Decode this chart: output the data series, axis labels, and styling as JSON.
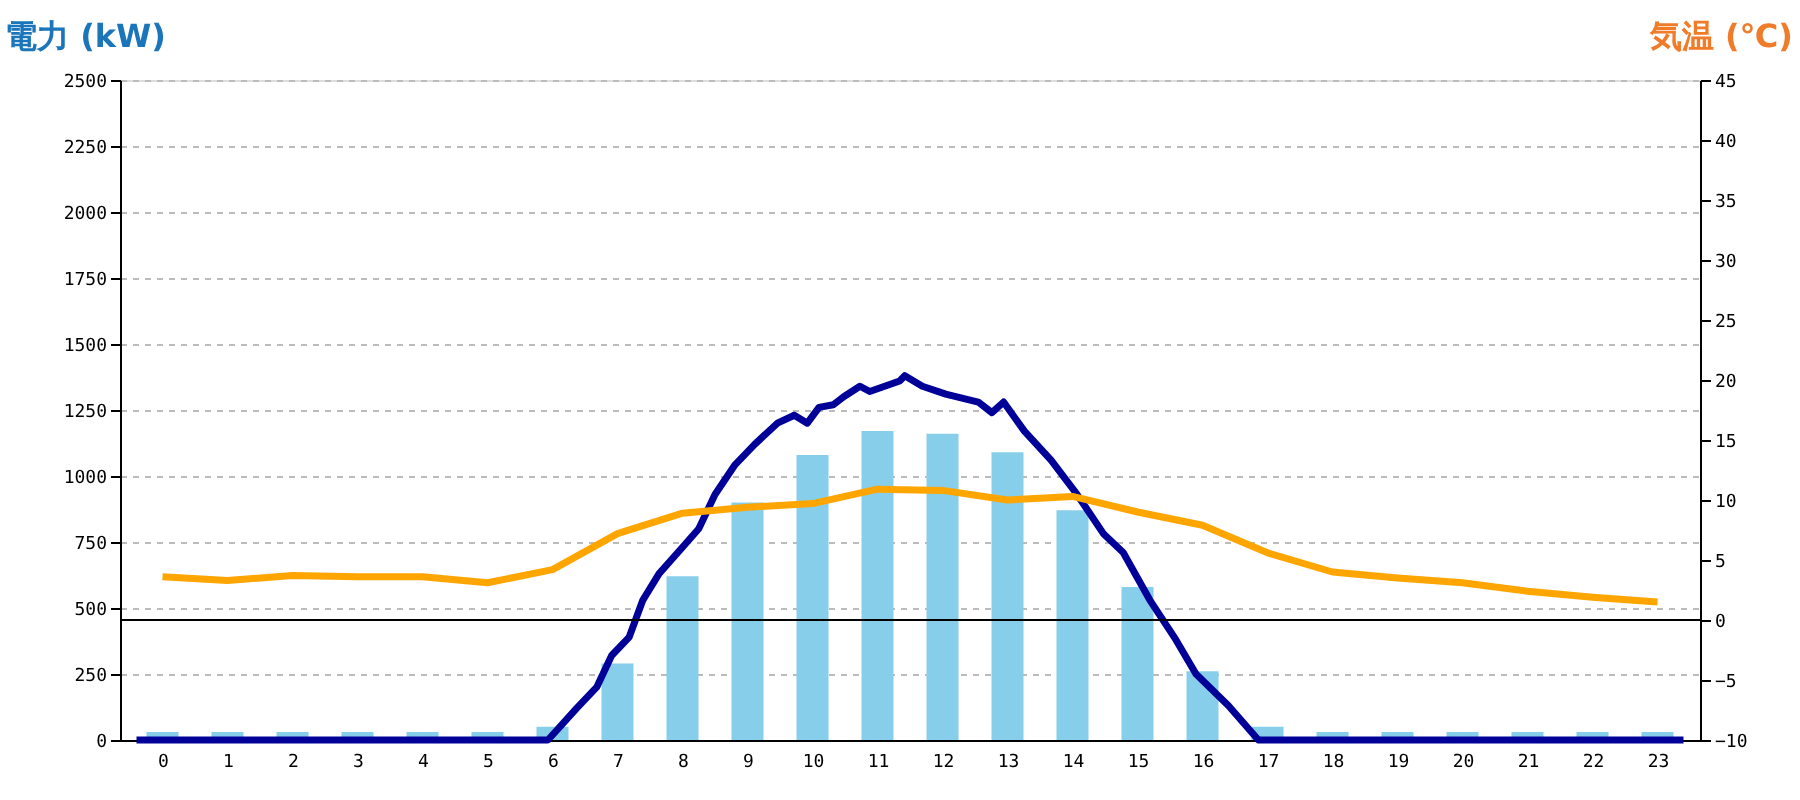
{
  "chart_data": {
    "type": "bar",
    "ylabel": "電力 (kW)",
    "y2label": "気温 (℃)",
    "x": [
      0,
      1,
      2,
      3,
      4,
      5,
      6,
      7,
      8,
      9,
      10,
      11,
      12,
      13,
      14,
      15,
      16,
      17,
      18,
      19,
      20,
      21,
      22,
      23
    ],
    "xlim": [
      -0.5,
      23.5
    ],
    "xticks": [
      0,
      1,
      2,
      3,
      4,
      5,
      6,
      7,
      8,
      9,
      10,
      11,
      12,
      13,
      14,
      15,
      16,
      17,
      18,
      19,
      20,
      21,
      22,
      23
    ],
    "ylim": [
      0,
      2500
    ],
    "yticks": [
      0,
      250,
      500,
      750,
      1000,
      1250,
      1500,
      1750,
      2000,
      2250,
      2500
    ],
    "y2lim": [
      -10,
      45
    ],
    "y2ticks": [
      -10,
      -5,
      0,
      5,
      10,
      15,
      20,
      25,
      30,
      35,
      40,
      45
    ],
    "grid": "y",
    "ref_lines": [
      {
        "axis": "y2",
        "value": 0,
        "color": "#000000"
      }
    ],
    "series": [
      {
        "color": "#87ceeb",
        "values": [
          30,
          30,
          30,
          30,
          30,
          30,
          50,
          290,
          620,
          900,
          1080,
          1170,
          1160,
          1090,
          870,
          580,
          260,
          50,
          30,
          30,
          30,
          30,
          30,
          30
        ]
      },
      {
        "type": "line",
        "color": "#000099",
        "x": [
          -0.4,
          5.93,
          6.37,
          6.68,
          6.91,
          7.18,
          7.39,
          7.64,
          8.0,
          8.25,
          8.5,
          8.8,
          9.11,
          9.46,
          9.72,
          9.92,
          10.1,
          10.32,
          10.48,
          10.73,
          10.88,
          11.34,
          11.42,
          11.69,
          12.05,
          12.55,
          12.76,
          12.94,
          13.26,
          13.67,
          14.07,
          14.48,
          14.78,
          15.19,
          15.59,
          15.9,
          16.4,
          16.86,
          23.4
        ],
        "values": [
          0,
          0,
          120,
          200,
          320,
          390,
          530,
          630,
          730,
          800,
          930,
          1040,
          1120,
          1200,
          1230,
          1200,
          1260,
          1270,
          1300,
          1340,
          1320,
          1360,
          1380,
          1340,
          1310,
          1280,
          1240,
          1280,
          1170,
          1060,
          930,
          780,
          710,
          530,
          380,
          250,
          130,
          0,
          0
        ]
      },
      {
        "type": "line",
        "axis": "y2",
        "color": "#ffa500",
        "values": [
          3.6,
          3.3,
          3.7,
          3.6,
          3.6,
          3.1,
          4.2,
          7.2,
          8.9,
          9.4,
          9.7,
          10.9,
          10.8,
          10.0,
          10.3,
          9.0,
          7.9,
          5.6,
          4.0,
          3.5,
          3.1,
          2.4,
          1.9,
          1.5
        ]
      }
    ]
  }
}
